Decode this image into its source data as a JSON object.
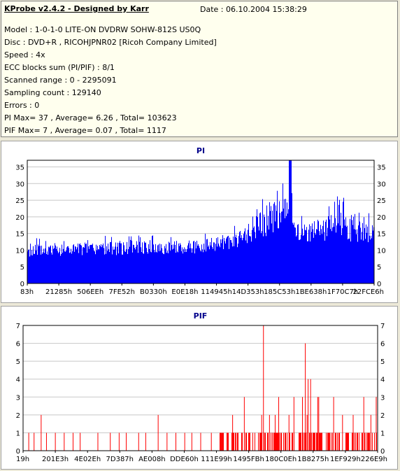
{
  "info": {
    "title": "KProbe v2.4.2 - Designed by Karr",
    "date": "Date : 06.10.2004 15:38:29",
    "lines": [
      "Model : 1-0-1-0 LITE-ON DVDRW SOHW-812S  US0Q",
      "Disc : DVD+R , RICOHJPNR02 [Ricoh Company Limited]",
      "Speed : 4x",
      "ECC blocks sum (PI/PIF) : 8/1",
      "Scanned range : 0 - 2295091",
      "Sampling count : 129140",
      "Errors : 0",
      "PI Max= 37 , Average= 6.26 , Total= 103623",
      "PIF Max= 7 , Average= 0.07 , Total= 1117"
    ]
  },
  "chart_data": [
    {
      "type": "bar",
      "title": "PI",
      "color": "#0000ff",
      "ylim": [
        0,
        37
      ],
      "yticks": [
        0,
        5,
        10,
        15,
        20,
        25,
        30,
        35
      ],
      "xticks": [
        "83h",
        "21285h",
        "506EEh",
        "7FE52h",
        "B0330h",
        "E0E18h",
        "114945h",
        "14D353h",
        "185C53h",
        "1BE638h",
        "1F70C7h",
        "22FCE6h"
      ],
      "profile": [
        {
          "x": 0.0,
          "base": 8,
          "peak": 12
        },
        {
          "x": 0.5,
          "base": 9,
          "peak": 13
        },
        {
          "x": 0.62,
          "base": 11,
          "peak": 16
        },
        {
          "x": 0.66,
          "base": 13,
          "peak": 22
        },
        {
          "x": 0.72,
          "base": 15,
          "peak": 27
        },
        {
          "x": 0.74,
          "base": 17,
          "peak": 30
        },
        {
          "x": 0.757,
          "base": 22,
          "peak": 37
        },
        {
          "x": 0.77,
          "base": 13,
          "peak": 18
        },
        {
          "x": 0.85,
          "base": 12,
          "peak": 19
        },
        {
          "x": 0.89,
          "base": 12,
          "peak": 26
        },
        {
          "x": 1.0,
          "base": 12,
          "peak": 18
        }
      ]
    },
    {
      "type": "bar",
      "title": "PIF",
      "color": "#ff0000",
      "ylim": [
        0,
        7
      ],
      "yticks": [
        0,
        1,
        2,
        3,
        4,
        5,
        6,
        7
      ],
      "xticks": [
        "19h",
        "201E3h",
        "4E02Eh",
        "7D387h",
        "AE008h",
        "DDE60h",
        "111E99h",
        "1495FBh",
        "180C0Eh",
        "1B8275h",
        "1EF929h",
        "226E9h"
      ],
      "spikes": [
        {
          "x": 0.015,
          "v": 1
        },
        {
          "x": 0.03,
          "v": 1
        },
        {
          "x": 0.05,
          "v": 2
        },
        {
          "x": 0.065,
          "v": 1
        },
        {
          "x": 0.09,
          "v": 1
        },
        {
          "x": 0.115,
          "v": 1
        },
        {
          "x": 0.14,
          "v": 1
        },
        {
          "x": 0.16,
          "v": 1
        },
        {
          "x": 0.21,
          "v": 1
        },
        {
          "x": 0.245,
          "v": 1
        },
        {
          "x": 0.27,
          "v": 1
        },
        {
          "x": 0.29,
          "v": 1
        },
        {
          "x": 0.325,
          "v": 1
        },
        {
          "x": 0.345,
          "v": 1
        },
        {
          "x": 0.38,
          "v": 2
        },
        {
          "x": 0.405,
          "v": 1
        },
        {
          "x": 0.43,
          "v": 1
        },
        {
          "x": 0.455,
          "v": 1
        },
        {
          "x": 0.475,
          "v": 1
        },
        {
          "x": 0.5,
          "v": 1
        },
        {
          "x": 0.53,
          "v": 1
        },
        {
          "x": 0.56,
          "v": 1
        },
        {
          "x": 0.59,
          "v": 2
        },
        {
          "x": 0.6,
          "v": 1
        },
        {
          "x": 0.623,
          "v": 3
        },
        {
          "x": 0.672,
          "v": 2
        },
        {
          "x": 0.694,
          "v": 2
        },
        {
          "x": 0.71,
          "v": 2
        },
        {
          "x": 0.72,
          "v": 3
        },
        {
          "x": 0.749,
          "v": 2
        },
        {
          "x": 0.763,
          "v": 3
        },
        {
          "x": 0.787,
          "v": 3
        },
        {
          "x": 0.8,
          "v": 2
        },
        {
          "x": 0.83,
          "v": 3
        },
        {
          "x": 0.833,
          "v": 3
        },
        {
          "x": 0.875,
          "v": 3
        },
        {
          "x": 0.9,
          "v": 2
        },
        {
          "x": 0.93,
          "v": 2
        },
        {
          "x": 0.96,
          "v": 3
        },
        {
          "x": 0.98,
          "v": 2
        },
        {
          "x": 0.995,
          "v": 3
        },
        {
          "x": 0.677,
          "v": 7
        },
        {
          "x": 0.795,
          "v": 6
        },
        {
          "x": 0.803,
          "v": 4
        },
        {
          "x": 0.81,
          "v": 4
        }
      ],
      "dense_from": 0.55
    }
  ]
}
